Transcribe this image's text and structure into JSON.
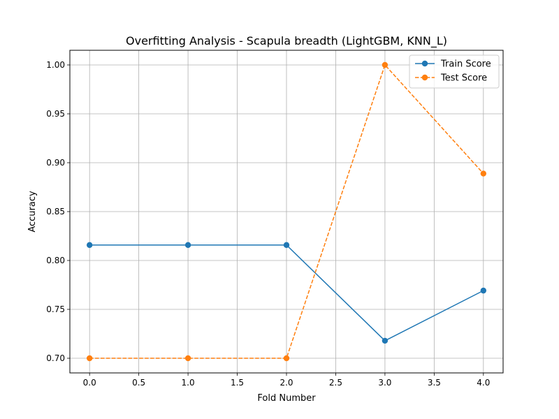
{
  "chart_data": {
    "type": "line",
    "title": "Overfitting Analysis - Scapula breadth (LightGBM, KNN_L)",
    "xlabel": "Fold Number",
    "ylabel": "Accuracy",
    "x": [
      0,
      1,
      2,
      3,
      4
    ],
    "xlim": [
      -0.2,
      4.2
    ],
    "ylim": [
      0.685,
      1.015
    ],
    "xticks": [
      0.0,
      0.5,
      1.0,
      1.5,
      2.0,
      2.5,
      3.0,
      3.5,
      4.0
    ],
    "xtick_labels": [
      "0.0",
      "0.5",
      "1.0",
      "1.5",
      "2.0",
      "2.5",
      "3.0",
      "3.5",
      "4.0"
    ],
    "yticks": [
      0.7,
      0.75,
      0.8,
      0.85,
      0.9,
      0.95,
      1.0
    ],
    "ytick_labels": [
      "0.70",
      "0.75",
      "0.80",
      "0.85",
      "0.90",
      "0.95",
      "1.00"
    ],
    "grid": true,
    "legend_position": "upper-right",
    "series": [
      {
        "name": "Train Score",
        "values": [
          0.8158,
          0.8158,
          0.8158,
          0.7179,
          0.7692
        ],
        "color": "#1f77b4",
        "linestyle": "solid",
        "marker": "circle"
      },
      {
        "name": "Test Score",
        "values": [
          0.7,
          0.7,
          0.7,
          1.0,
          0.8889
        ],
        "color": "#ff7f0e",
        "linestyle": "dashed",
        "marker": "circle"
      }
    ]
  }
}
